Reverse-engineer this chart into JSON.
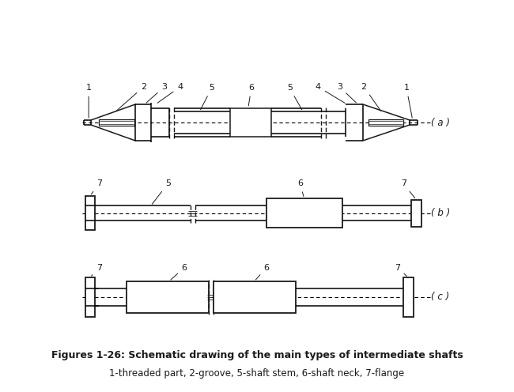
{
  "title": "Figures 1-26: Schematic drawing of the main types of intermediate shafts",
  "subtitle": "1-threaded part, 2-groove, 5-shaft stem, 6-shaft neck, 7-flange",
  "title_fontsize": 9,
  "subtitle_fontsize": 8.5,
  "bg_color": "#ffffff",
  "line_color": "#1a1a1a",
  "label_a": "( a )",
  "label_b": "( b )",
  "label_c": "( c )"
}
